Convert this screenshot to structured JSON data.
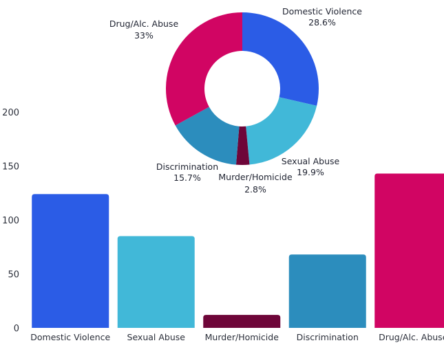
{
  "chart_data": [
    {
      "type": "bar",
      "categories": [
        "Domestic Violence",
        "Sexual Abuse",
        "Murder/Homicide",
        "Discrimination",
        "Drug/Alc. Abuse"
      ],
      "values": [
        124,
        85,
        12,
        68,
        143
      ],
      "colors": [
        "#2b5ce6",
        "#41b8d8",
        "#6e0639",
        "#2c8dbd",
        "#d10563"
      ],
      "ylim": [
        0,
        200
      ],
      "yticks": [
        "0",
        "50",
        "100",
        "150",
        "200"
      ],
      "grid": false
    },
    {
      "type": "pie",
      "donut": true,
      "slices": [
        {
          "label": "Domestic Violence",
          "pct_label": "28.6%",
          "value": 28.6,
          "color": "#2b5ce6"
        },
        {
          "label": "Sexual Abuse",
          "pct_label": "19.9%",
          "value": 19.9,
          "color": "#41b8d8"
        },
        {
          "label": "Murder/Homicide",
          "pct_label": "2.8%",
          "value": 2.8,
          "color": "#6e0639"
        },
        {
          "label": "Discrimination",
          "pct_label": "15.7%",
          "value": 15.7,
          "color": "#2c8dbd"
        },
        {
          "label": "Drug/Alc. Abuse",
          "pct_label": "33%",
          "value": 33.0,
          "color": "#d10563"
        }
      ]
    }
  ]
}
